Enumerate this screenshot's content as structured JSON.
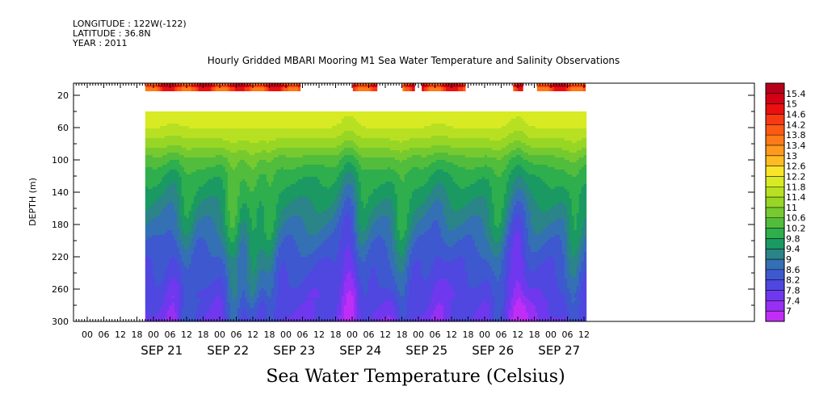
{
  "meta": {
    "longitude": "LONGITUDE : 122W(-122)",
    "latitude": "LATITUDE : 36.8N",
    "year": "YEAR : 2011"
  },
  "title": "Hourly Gridded MBARI Mooring M1 Sea Water Temperature and Salinity Observations",
  "bottom_title": "Sea Water Temperature (Celsius)",
  "chart_data": {
    "type": "heatmap",
    "ylabel": "DEPTH (m)",
    "y_reversed": true,
    "ylim": [
      300,
      5
    ],
    "y_ticks": [
      20,
      60,
      100,
      140,
      180,
      220,
      260,
      300
    ],
    "x_hour_labels": [
      "00",
      "06",
      "12",
      "18",
      "00",
      "06",
      "12",
      "18",
      "00",
      "06",
      "12",
      "18",
      "00",
      "06",
      "12",
      "18",
      "00",
      "06",
      "12",
      "18",
      "00",
      "06",
      "12",
      "18",
      "00",
      "06",
      "12",
      "18",
      "00",
      "06",
      "12"
    ],
    "x_day_labels": [
      "SEP 21",
      "SEP 22",
      "SEP 23",
      "SEP 24",
      "SEP 25",
      "SEP 26",
      "SEP 27"
    ],
    "colorbar": {
      "labels": [
        "15.4",
        "15",
        "14.6",
        "14.2",
        "13.8",
        "13.4",
        "13",
        "12.6",
        "12.2",
        "11.8",
        "11.4",
        "11",
        "10.6",
        "10.2",
        "9.8",
        "9.4",
        "9",
        "8.6",
        "8.2",
        "7.8",
        "7.4",
        "7"
      ],
      "colors": [
        "#b8001a",
        "#d40016",
        "#ea1010",
        "#f83a12",
        "#ff5a14",
        "#ff7a18",
        "#ff9a1c",
        "#ffbc22",
        "#f8e428",
        "#d8ea24",
        "#b8e022",
        "#98d626",
        "#76ca30",
        "#52bc3c",
        "#2eae4c",
        "#1a9a62",
        "#2a8488",
        "#3470b4",
        "#3e58d0",
        "#5046e0",
        "#7038ee",
        "#9830f4",
        "#c02ef6"
      ]
    },
    "surface_sensor": {
      "depth_m": 10,
      "value_range": [
        13.4,
        15.0
      ],
      "segments_days_from_sep20_00": [
        [
          0.875,
          3.21
        ],
        [
          4.01,
          4.36
        ],
        [
          4.76,
          4.92
        ],
        [
          5.05,
          5.68
        ],
        [
          6.43,
          6.56
        ],
        [
          6.79,
          7.5
        ]
      ]
    },
    "profile": {
      "start_depth_m": 40,
      "start_time_day": 0.875,
      "end_time_day": 7.5,
      "depth_temperature": [
        [
          40,
          12.2
        ],
        [
          60,
          11.8
        ],
        [
          80,
          11.2
        ],
        [
          100,
          10.4
        ],
        [
          120,
          9.9
        ],
        [
          140,
          9.6
        ],
        [
          160,
          9.3
        ],
        [
          180,
          9.0
        ],
        [
          200,
          8.7
        ],
        [
          220,
          8.4
        ],
        [
          240,
          8.2
        ],
        [
          260,
          8.0
        ],
        [
          280,
          7.8
        ],
        [
          300,
          7.6
        ]
      ],
      "warm_events": [
        [
          1.5,
          0.6
        ],
        [
          2.2,
          1.2
        ],
        [
          2.5,
          1.0
        ],
        [
          2.75,
          0.9
        ],
        [
          4.75,
          0.9
        ],
        [
          4.15,
          0.5
        ],
        [
          6.2,
          0.7
        ],
        [
          7.35,
          0.8
        ]
      ],
      "cold_events": [
        [
          3.95,
          1.0
        ],
        [
          1.3,
          0.4
        ],
        [
          5.3,
          0.4
        ],
        [
          6.5,
          0.9
        ]
      ]
    }
  }
}
